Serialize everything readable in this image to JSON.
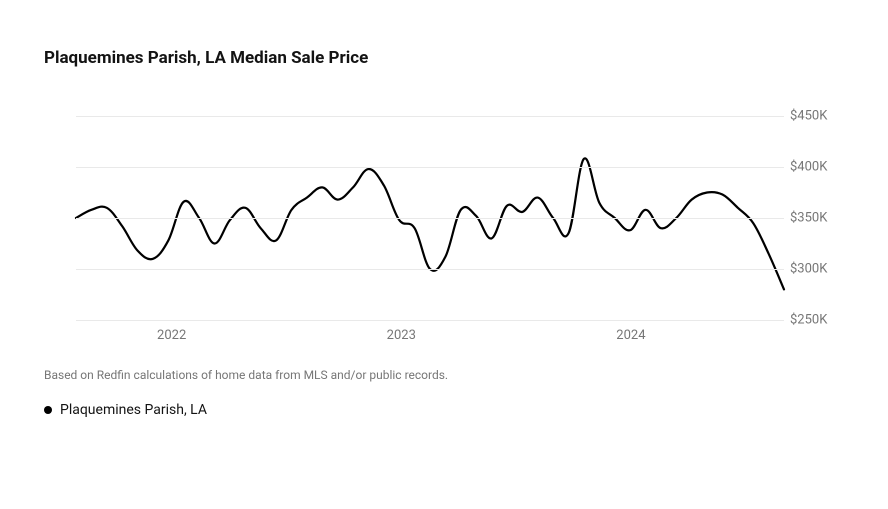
{
  "chart": {
    "type": "line",
    "title": "Plaquemines Parish, LA Median Sale Price",
    "title_fontsize": 17,
    "title_fontweight": 700,
    "title_color": "#131313",
    "background_color": "#ffffff",
    "grid_color": "#e9e9e9",
    "axis_label_color": "#767676",
    "axis_label_fontsize": 13,
    "line_color": "#000000",
    "line_width": 2.2,
    "ylim": [
      250,
      450
    ],
    "y_ticks": [
      {
        "value": 250,
        "label": "$250K"
      },
      {
        "value": 300,
        "label": "$300K"
      },
      {
        "value": 350,
        "label": "$350K"
      },
      {
        "value": 400,
        "label": "$400K"
      },
      {
        "value": 450,
        "label": "$450K"
      }
    ],
    "x_ticks": [
      {
        "x": 5,
        "label": "2022"
      },
      {
        "x": 17,
        "label": "2023"
      },
      {
        "x": 29,
        "label": "2024"
      }
    ],
    "xlim": [
      0,
      37
    ],
    "series": [
      {
        "name": "Plaquemines Parish, LA",
        "color": "#000000",
        "values": [
          350,
          358,
          360,
          342,
          318,
          310,
          328,
          366,
          350,
          325,
          348,
          360,
          340,
          328,
          358,
          370,
          380,
          368,
          380,
          398,
          382,
          348,
          340,
          300,
          312,
          358,
          352,
          330,
          362,
          356,
          370,
          350,
          335,
          408,
          365,
          350,
          338,
          358,
          340,
          350,
          368,
          375,
          373,
          360,
          345,
          315,
          280
        ]
      }
    ],
    "footnote": "Based on Redfin calculations of home data from MLS and/or public records.",
    "footnote_fontsize": 12,
    "footnote_color": "#767676",
    "legend": {
      "items": [
        {
          "label": "Plaquemines Parish, LA",
          "marker_color": "#000000"
        }
      ],
      "fontsize": 14,
      "text_color": "#131313"
    }
  }
}
